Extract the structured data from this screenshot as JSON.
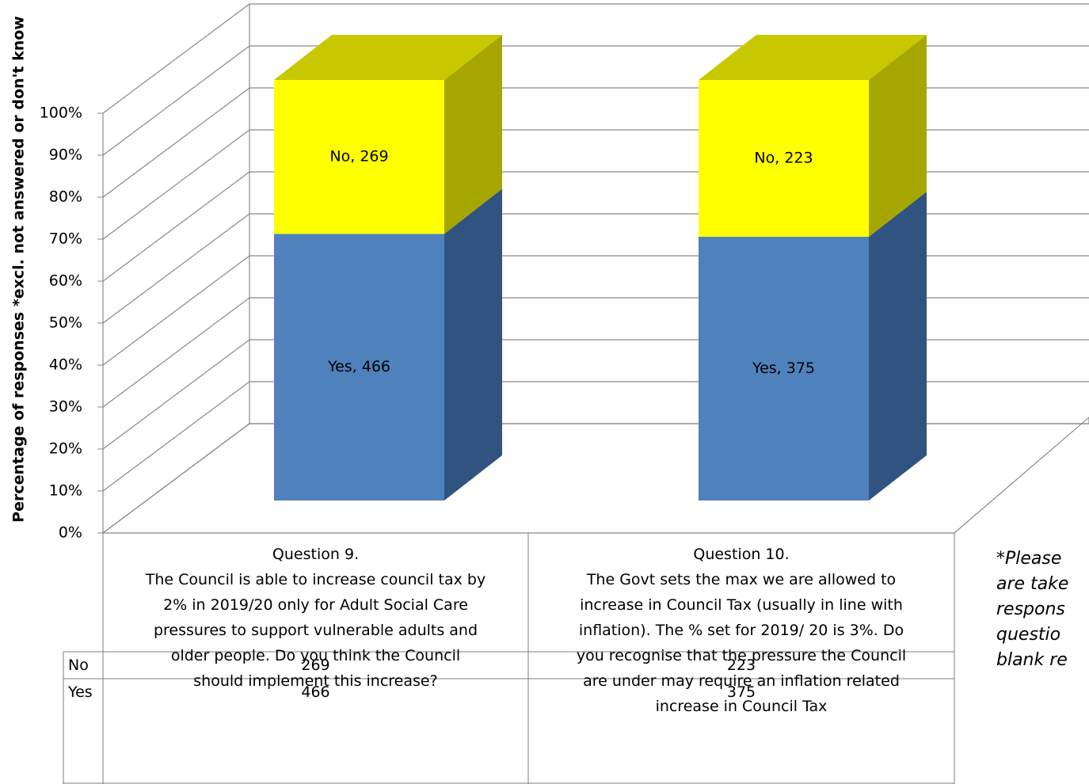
{
  "chart_data": {
    "type": "bar3d",
    "stacking": "percent",
    "y_label": "Percentage of responses *excl. not answered or don't know",
    "categories": [
      "Question 9.\nThe Council is able to increase council tax by\n2% in 2019/20 only for Adult Social Care\npressures to support vulnerable adults and\nolder people.  Do you think the Council\nshould implement this increase?",
      "Question 10.\nThe Govt sets the max we are allowed to\nincrease in Council Tax (usually in line with\ninflation). The % set for 2019/ 20 is 3%.  Do\nyou recognise that the pressure the Council\nare under may require an inflation related\nincrease in Council Tax"
    ],
    "series": [
      {
        "name": "Yes",
        "color": "#4f81bd",
        "side_color": "#30547f",
        "values": [
          466,
          375
        ],
        "value_labels": [
          "Yes, 466",
          "Yes, 375"
        ]
      },
      {
        "name": "No",
        "color": "#ffff00",
        "side_color": "#a6a600",
        "top_color": "#c8c800",
        "values": [
          269,
          223
        ],
        "value_labels": [
          "No, 269",
          "No, 223"
        ]
      }
    ],
    "ylim": [
      0,
      100
    ],
    "yticks": [
      {
        "value": 0,
        "label": "0%"
      },
      {
        "value": 10,
        "label": "10%"
      },
      {
        "value": 20,
        "label": "20%"
      },
      {
        "value": 30,
        "label": "30%"
      },
      {
        "value": 40,
        "label": "40%"
      },
      {
        "value": 50,
        "label": "50%"
      },
      {
        "value": 60,
        "label": "60%"
      },
      {
        "value": 70,
        "label": "70%"
      },
      {
        "value": 80,
        "label": "80%"
      },
      {
        "value": 90,
        "label": "90%"
      },
      {
        "value": 100,
        "label": "100%"
      }
    ],
    "grid": true,
    "data_table": true
  },
  "note": {
    "lines": [
      "*Please",
      "are take",
      "respons",
      "questio",
      "blank re"
    ]
  }
}
